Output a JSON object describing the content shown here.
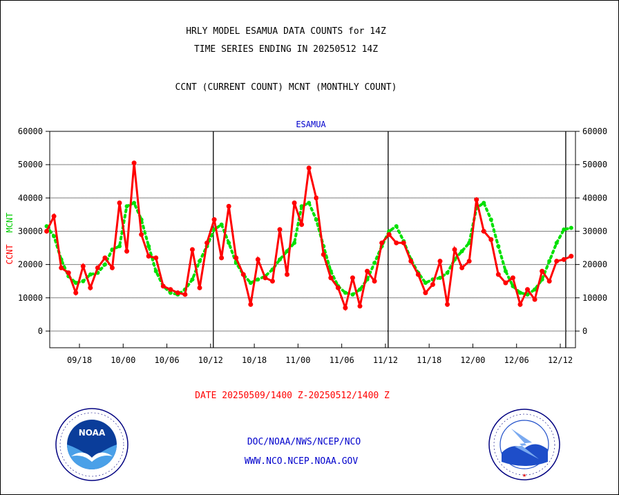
{
  "title_line1": "HRLY MODEL ESAMUA DATA COUNTS for 14Z",
  "title_line2": "TIME SERIES ENDING IN 20250512 14Z",
  "subtitle": "CCNT (CURRENT COUNT) MCNT (MONTHLY COUNT)",
  "date_range": "DATE 20250509/1400 Z-20250512/1400 Z",
  "footer": {
    "line1": "DOC/NOAA/NWS/NCEP/NCO",
    "line2": "WWW.NCO.NCEP.NOAA.GOV"
  },
  "logos": {
    "left": "NOAA",
    "right": "NATIONAL WEATHER SERVICE"
  },
  "colors": {
    "ccnt": "#ff0000",
    "mcnt": "#00e000",
    "accent": "#0000cc"
  },
  "chart_data": {
    "type": "line",
    "title": "ESAMUA",
    "ylabel_left": [
      "CCNT",
      "MCNT"
    ],
    "ylim": [
      -5000,
      60000
    ],
    "yticks": [
      0,
      10000,
      20000,
      30000,
      40000,
      50000,
      60000
    ],
    "ytick_labels": [
      "0",
      "10000",
      "20000",
      "30000",
      "40000",
      "50000",
      "60000"
    ],
    "xticks": [
      {
        "label": "09/18",
        "i": 3
      },
      {
        "label": "10/00",
        "i": 7
      },
      {
        "label": "10/06",
        "i": 11
      },
      {
        "label": "10/12",
        "i": 15
      },
      {
        "label": "10/18",
        "i": 19
      },
      {
        "label": "11/00",
        "i": 23
      },
      {
        "label": "11/06",
        "i": 27
      },
      {
        "label": "11/12",
        "i": 31
      },
      {
        "label": "11/18",
        "i": 35
      },
      {
        "label": "12/00",
        "i": 39
      },
      {
        "label": "12/06",
        "i": 43
      },
      {
        "label": "12/12",
        "i": 47
      }
    ],
    "day_lines": [
      15.25,
      31.25,
      47.5
    ],
    "x_count": 49,
    "grid": "horizontal dotted",
    "series": [
      {
        "name": "CCNT",
        "color": "#ff0000",
        "points": [
          [
            0,
            30000
          ],
          [
            0.5,
            34500
          ],
          [
            1,
            19000
          ],
          [
            1.5,
            17500
          ],
          [
            2,
            11500
          ],
          [
            2.5,
            19500
          ],
          [
            3,
            13000
          ],
          [
            3.5,
            19000
          ],
          [
            4,
            22000
          ],
          [
            4.5,
            19000
          ],
          [
            5,
            38500
          ],
          [
            5.5,
            24000
          ],
          [
            6,
            50500
          ],
          [
            6.5,
            29000
          ],
          [
            7,
            22500
          ],
          [
            7.5,
            22000
          ],
          [
            8,
            13500
          ],
          [
            8.5,
            12500
          ],
          [
            9,
            11500
          ],
          [
            9.5,
            11000
          ],
          [
            10,
            24500
          ],
          [
            10.5,
            13000
          ],
          [
            11,
            26500
          ],
          [
            11.5,
            33500
          ],
          [
            12,
            22000
          ],
          [
            12.5,
            37500
          ],
          [
            13,
            22000
          ],
          [
            13.5,
            17000
          ],
          [
            14,
            8000
          ],
          [
            14.5,
            21500
          ],
          [
            15,
            16000
          ],
          [
            15.5,
            15000
          ],
          [
            16,
            30500
          ],
          [
            16.5,
            17000
          ],
          [
            17,
            38500
          ],
          [
            17.5,
            32000
          ],
          [
            18,
            49000
          ],
          [
            18.5,
            40000
          ],
          [
            19,
            23000
          ],
          [
            19.5,
            16000
          ],
          [
            20,
            13000
          ],
          [
            20.5,
            7000
          ],
          [
            21,
            16000
          ],
          [
            21.5,
            7500
          ],
          [
            22,
            18000
          ],
          [
            22.5,
            15000
          ],
          [
            23,
            26500
          ],
          [
            23.5,
            29000
          ],
          [
            24,
            26500
          ],
          [
            24.5,
            26500
          ],
          [
            25,
            21000
          ],
          [
            25.5,
            17000
          ],
          [
            26,
            11500
          ],
          [
            26.5,
            14000
          ],
          [
            27,
            21000
          ],
          [
            27.5,
            8000
          ],
          [
            28,
            24500
          ],
          [
            28.5,
            19000
          ],
          [
            29,
            21000
          ],
          [
            29.5,
            39500
          ],
          [
            30,
            30000
          ],
          [
            30.5,
            27500
          ],
          [
            31,
            17000
          ],
          [
            31.5,
            14500
          ],
          [
            32,
            16000
          ],
          [
            32.5,
            8000
          ],
          [
            33,
            12500
          ],
          [
            33.5,
            9500
          ],
          [
            34,
            18000
          ],
          [
            34.5,
            15000
          ],
          [
            35,
            21000
          ],
          [
            35.5,
            21500
          ],
          [
            36,
            22500
          ]
        ]
      },
      {
        "name": "MCNT",
        "color": "#00e000",
        "points": [
          [
            0,
            31500
          ],
          [
            0.5,
            28500
          ],
          [
            1,
            21500
          ],
          [
            1.5,
            16500
          ],
          [
            2,
            14500
          ],
          [
            2.5,
            15000
          ],
          [
            3,
            17000
          ],
          [
            3.5,
            17500
          ],
          [
            4,
            20000
          ],
          [
            4.5,
            24500
          ],
          [
            5,
            25500
          ],
          [
            5.5,
            37500
          ],
          [
            6,
            38500
          ],
          [
            6.5,
            33500
          ],
          [
            7,
            25500
          ],
          [
            7.5,
            18000
          ],
          [
            8,
            13500
          ],
          [
            8.5,
            11500
          ],
          [
            9,
            11000
          ],
          [
            9.5,
            12500
          ],
          [
            10,
            15500
          ],
          [
            10.5,
            21000
          ],
          [
            11,
            25500
          ],
          [
            11.5,
            30500
          ],
          [
            12,
            32000
          ],
          [
            12.5,
            26500
          ],
          [
            13,
            20500
          ],
          [
            13.5,
            17000
          ],
          [
            14,
            14500
          ],
          [
            14.5,
            15500
          ],
          [
            15,
            16500
          ],
          [
            15.5,
            18500
          ],
          [
            16,
            21500
          ],
          [
            16.5,
            24000
          ],
          [
            17,
            26500
          ],
          [
            17.5,
            37500
          ],
          [
            18,
            38500
          ],
          [
            18.5,
            33500
          ],
          [
            19,
            25500
          ],
          [
            19.5,
            18000
          ],
          [
            20,
            13500
          ],
          [
            20.5,
            11500
          ],
          [
            21,
            11000
          ],
          [
            21.5,
            12500
          ],
          [
            22,
            15500
          ],
          [
            22.5,
            20500
          ],
          [
            23,
            25500
          ],
          [
            23.5,
            30000
          ],
          [
            24,
            31500
          ],
          [
            24.5,
            27000
          ],
          [
            25,
            21500
          ],
          [
            25.5,
            17500
          ],
          [
            26,
            14500
          ],
          [
            26.5,
            15500
          ],
          [
            27,
            16000
          ],
          [
            27.5,
            17500
          ],
          [
            28,
            21500
          ],
          [
            28.5,
            24000
          ],
          [
            29,
            26500
          ],
          [
            29.5,
            37000
          ],
          [
            30,
            38500
          ],
          [
            30.5,
            33500
          ],
          [
            31,
            25500
          ],
          [
            31.5,
            18000
          ],
          [
            32,
            13500
          ],
          [
            32.5,
            11500
          ],
          [
            33,
            11000
          ],
          [
            33.5,
            12500
          ],
          [
            34,
            15500
          ],
          [
            34.5,
            21000
          ],
          [
            35,
            26500
          ],
          [
            35.5,
            30500
          ],
          [
            36,
            31000
          ]
        ]
      }
    ]
  }
}
